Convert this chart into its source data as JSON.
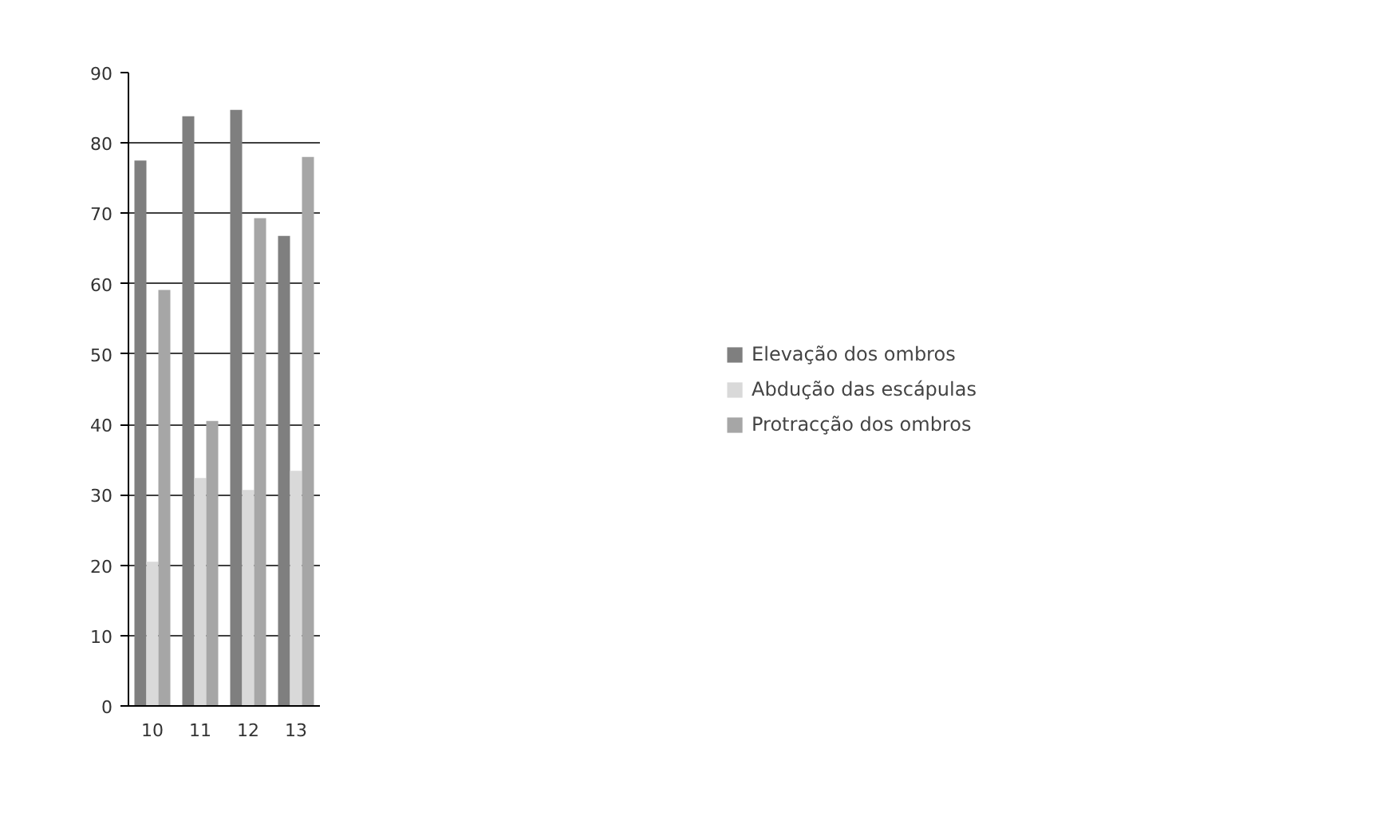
{
  "chart_data": {
    "type": "bar",
    "categories": [
      "10",
      "11",
      "12",
      "13"
    ],
    "series": [
      {
        "name": "Elevação dos ombros",
        "color": "#7f7f7f",
        "values": [
          77.5,
          83.8,
          84.7,
          66.8
        ]
      },
      {
        "name": "Abdução das escápulas",
        "color": "#d9d9d9",
        "values": [
          20.5,
          32.4,
          30.7,
          33.4
        ]
      },
      {
        "name": "Protracção dos ombros",
        "color": "#a6a6a6",
        "values": [
          59.1,
          40.5,
          69.3,
          78.0
        ]
      }
    ],
    "ylim": [
      0,
      90
    ],
    "yticks": [
      0,
      10,
      20,
      30,
      40,
      50,
      60,
      70,
      80,
      90
    ],
    "grid": "y",
    "legend": "right"
  }
}
